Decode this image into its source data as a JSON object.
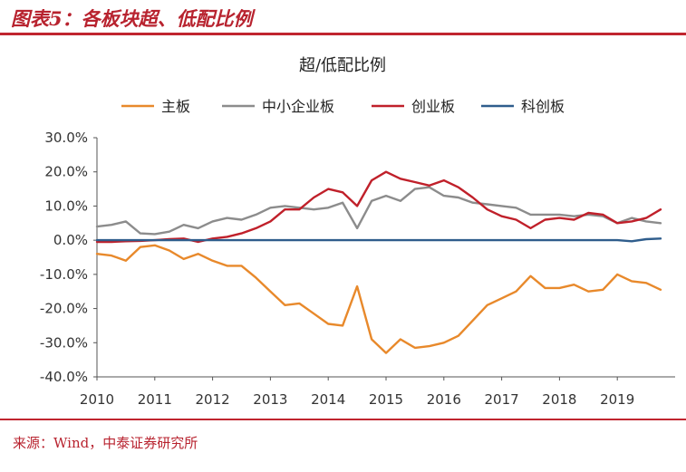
{
  "figure_title": "图表5：各板块超、低配比例",
  "source": "来源：Wind，中泰证券研究所",
  "colors": {
    "accent": "#c0252f",
    "main_board": "#e8892b",
    "sme_board": "#8c8c8c",
    "chinext": "#c0202a",
    "star": "#2f5d8c"
  },
  "chart_data": {
    "type": "line",
    "title": "超/低配比例",
    "xlabel": "",
    "ylabel": "",
    "ylim": [
      -40,
      30
    ],
    "yticks": [
      "30.0%",
      "20.0%",
      "10.0%",
      "0.0%",
      "-10.0%",
      "-20.0%",
      "-30.0%",
      "-40.0%"
    ],
    "yticks_values": [
      30,
      20,
      10,
      0,
      -10,
      -20,
      -30,
      -40
    ],
    "xticks": [
      "2010",
      "2011",
      "2012",
      "2013",
      "2014",
      "2015",
      "2016",
      "2017",
      "2018",
      "2019"
    ],
    "xlim": [
      2010,
      2020
    ],
    "grid": false,
    "legend_position": "top",
    "x": [
      2010.0,
      2010.25,
      2010.5,
      2010.75,
      2011.0,
      2011.25,
      2011.5,
      2011.75,
      2012.0,
      2012.25,
      2012.5,
      2012.75,
      2013.0,
      2013.25,
      2013.5,
      2013.75,
      2014.0,
      2014.25,
      2014.5,
      2014.75,
      2015.0,
      2015.25,
      2015.5,
      2015.75,
      2016.0,
      2016.25,
      2016.5,
      2016.75,
      2017.0,
      2017.25,
      2017.5,
      2017.75,
      2018.0,
      2018.25,
      2018.5,
      2018.75,
      2019.0,
      2019.25,
      2019.5,
      2019.75
    ],
    "series": [
      {
        "name": "主板",
        "color": "#e8892b",
        "values": [
          -4.0,
          -4.5,
          -6.0,
          -2.0,
          -1.5,
          -3.0,
          -5.5,
          -4.0,
          -6.0,
          -7.5,
          -7.5,
          -11.0,
          -15.0,
          -19.0,
          -18.5,
          -21.5,
          -24.5,
          -25.0,
          -13.5,
          -29.0,
          -33.0,
          -29.0,
          -31.5,
          -31.0,
          -30.0,
          -28.0,
          -23.5,
          -19.0,
          -17.0,
          -15.0,
          -10.5,
          -14.0,
          -14.0,
          -13.0,
          -15.0,
          -14.5,
          -10.0,
          -12.0,
          -12.5,
          -14.5
        ]
      },
      {
        "name": "中小企业板",
        "color": "#8c8c8c",
        "values": [
          4.0,
          4.5,
          5.5,
          2.0,
          1.8,
          2.5,
          4.5,
          3.5,
          5.5,
          6.5,
          6.0,
          7.5,
          9.5,
          10.0,
          9.5,
          9.0,
          9.5,
          11.0,
          3.5,
          11.5,
          13.0,
          11.5,
          15.0,
          15.5,
          13.0,
          12.5,
          11.0,
          10.5,
          10.0,
          9.5,
          7.5,
          7.5,
          7.5,
          7.0,
          7.5,
          7.0,
          5.0,
          6.5,
          5.5,
          5.0
        ]
      },
      {
        "name": "创业板",
        "color": "#c0202a",
        "values": [
          -0.5,
          -0.5,
          -0.3,
          -0.2,
          0.0,
          0.3,
          0.5,
          -0.5,
          0.5,
          1.0,
          2.0,
          3.5,
          5.5,
          9.0,
          9.0,
          12.5,
          15.0,
          14.0,
          10.0,
          17.5,
          20.0,
          18.0,
          17.0,
          16.0,
          17.5,
          15.5,
          12.5,
          9.0,
          7.0,
          6.0,
          3.5,
          6.0,
          6.5,
          6.0,
          8.0,
          7.5,
          5.0,
          5.5,
          6.5,
          9.0
        ]
      },
      {
        "name": "科创板",
        "color": "#2f5d8c",
        "values": [
          0.0,
          0.0,
          0.0,
          0.0,
          0.0,
          0.0,
          0.0,
          0.0,
          0.0,
          0.0,
          0.0,
          0.0,
          0.0,
          0.0,
          0.0,
          0.0,
          0.0,
          0.0,
          0.0,
          0.0,
          0.0,
          0.0,
          0.0,
          0.0,
          0.0,
          0.0,
          0.0,
          0.0,
          0.0,
          0.0,
          0.0,
          0.0,
          0.0,
          0.0,
          0.0,
          0.0,
          0.0,
          -0.3,
          0.3,
          0.5
        ]
      }
    ]
  }
}
